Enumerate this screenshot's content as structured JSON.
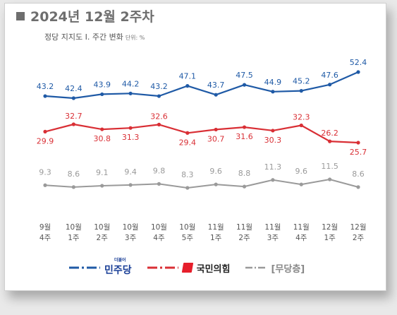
{
  "header": {
    "title": "2024년 12월 2주차",
    "subtitle": "정당 지지도 Ⅰ. 주간 변화",
    "unit": "단위: %"
  },
  "colors": {
    "dem": "#1f5aa6",
    "ppp": "#d92f35",
    "none": "#9a9a9a"
  },
  "chart_data": {
    "type": "line",
    "categories": [
      [
        "9월",
        "4주"
      ],
      [
        "10월",
        "1주"
      ],
      [
        "10월",
        "2주"
      ],
      [
        "10월",
        "3주"
      ],
      [
        "10월",
        "4주"
      ],
      [
        "10월",
        "5주"
      ],
      [
        "11월",
        "1주"
      ],
      [
        "11월",
        "2주"
      ],
      [
        "11월",
        "3주"
      ],
      [
        "11월",
        "4주"
      ],
      [
        "12월",
        "1주"
      ],
      [
        "12월",
        "2주"
      ]
    ],
    "series": [
      {
        "name": "민주당",
        "key": "dem",
        "values": [
          43.2,
          42.4,
          43.9,
          44.2,
          43.2,
          47.1,
          43.7,
          47.5,
          44.9,
          45.2,
          47.6,
          52.4
        ]
      },
      {
        "name": "국민의힘",
        "key": "ppp",
        "values": [
          29.9,
          32.7,
          30.8,
          31.3,
          32.6,
          29.4,
          30.7,
          31.6,
          30.3,
          32.3,
          26.2,
          25.7
        ]
      },
      {
        "name": "[무당층]",
        "key": "none",
        "values": [
          9.3,
          8.6,
          9.1,
          9.4,
          9.8,
          8.3,
          9.6,
          8.8,
          11.3,
          9.6,
          11.5,
          8.6
        ]
      }
    ],
    "legend_position": "bottom",
    "grid": false
  },
  "legend": {
    "dem_tag": "더불어",
    "dem_label": "민주당",
    "ppp_label": "국민의힘",
    "none_label": "[무당층]"
  }
}
